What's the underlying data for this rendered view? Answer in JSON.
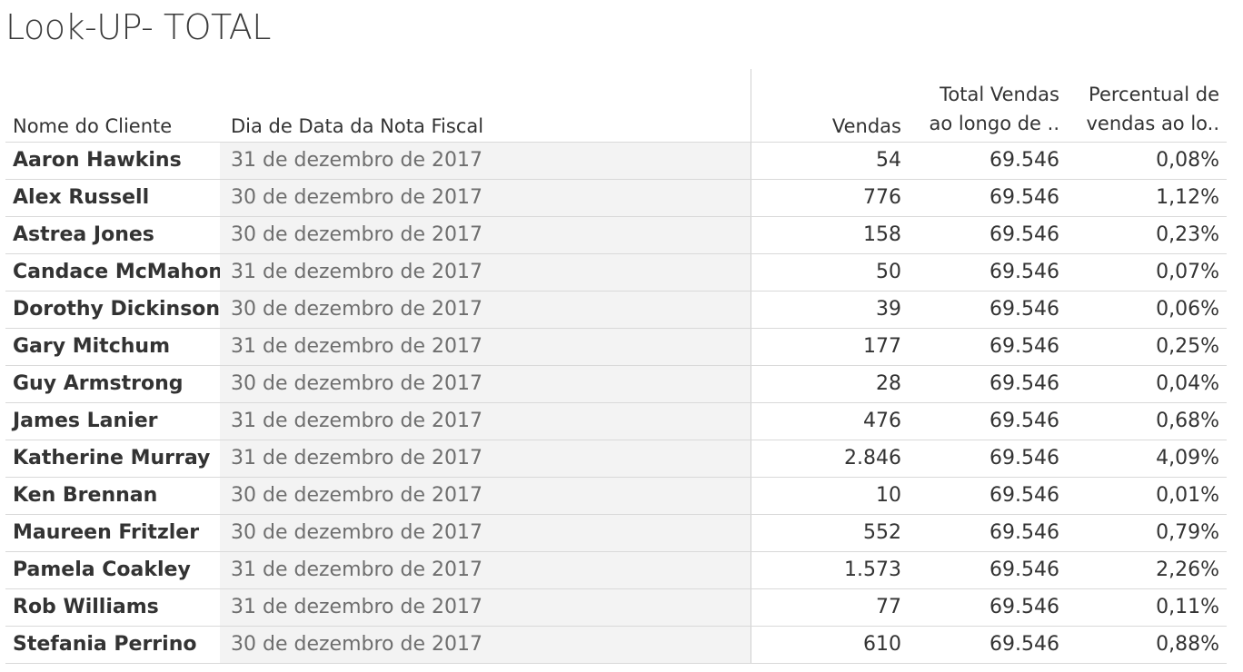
{
  "title": "Look-UP- TOTAL",
  "chart_data": {
    "type": "table",
    "columns": [
      "Nome do Cliente",
      "Dia de Data da Nota Fiscal",
      "Vendas",
      "Total Vendas ao longo de ..",
      "Percentual de vendas ao lo.."
    ],
    "header_lines": {
      "total": [
        "Total Vendas",
        "ao longo de .."
      ],
      "perc": [
        "Percentual de",
        "vendas ao lo.."
      ]
    },
    "rows": [
      {
        "name": "Aaron Hawkins",
        "date": "31 de dezembro de 2017",
        "vendas": "54",
        "total": "69.546",
        "perc": "0,08%"
      },
      {
        "name": "Alex Russell",
        "date": "30 de dezembro de 2017",
        "vendas": "776",
        "total": "69.546",
        "perc": "1,12%"
      },
      {
        "name": "Astrea Jones",
        "date": "30 de dezembro de 2017",
        "vendas": "158",
        "total": "69.546",
        "perc": "0,23%"
      },
      {
        "name": "Candace McMahon",
        "date": "31 de dezembro de 2017",
        "vendas": "50",
        "total": "69.546",
        "perc": "0,07%"
      },
      {
        "name": "Dorothy Dickinson",
        "date": "30 de dezembro de 2017",
        "vendas": "39",
        "total": "69.546",
        "perc": "0,06%"
      },
      {
        "name": "Gary Mitchum",
        "date": "31 de dezembro de 2017",
        "vendas": "177",
        "total": "69.546",
        "perc": "0,25%"
      },
      {
        "name": "Guy Armstrong",
        "date": "30 de dezembro de 2017",
        "vendas": "28",
        "total": "69.546",
        "perc": "0,04%"
      },
      {
        "name": "James Lanier",
        "date": "31 de dezembro de 2017",
        "vendas": "476",
        "total": "69.546",
        "perc": "0,68%"
      },
      {
        "name": "Katherine Murray",
        "date": "31 de dezembro de 2017",
        "vendas": "2.846",
        "total": "69.546",
        "perc": "4,09%"
      },
      {
        "name": "Ken Brennan",
        "date": "30 de dezembro de 2017",
        "vendas": "10",
        "total": "69.546",
        "perc": "0,01%"
      },
      {
        "name": "Maureen Fritzler",
        "date": "30 de dezembro de 2017",
        "vendas": "552",
        "total": "69.546",
        "perc": "0,79%"
      },
      {
        "name": "Pamela Coakley",
        "date": "31 de dezembro de 2017",
        "vendas": "1.573",
        "total": "69.546",
        "perc": "2,26%"
      },
      {
        "name": "Rob Williams",
        "date": "31 de dezembro de 2017",
        "vendas": "77",
        "total": "69.546",
        "perc": "0,11%"
      },
      {
        "name": "Stefania Perrino",
        "date": "30 de dezembro de 2017",
        "vendas": "610",
        "total": "69.546",
        "perc": "0,88%"
      }
    ]
  }
}
